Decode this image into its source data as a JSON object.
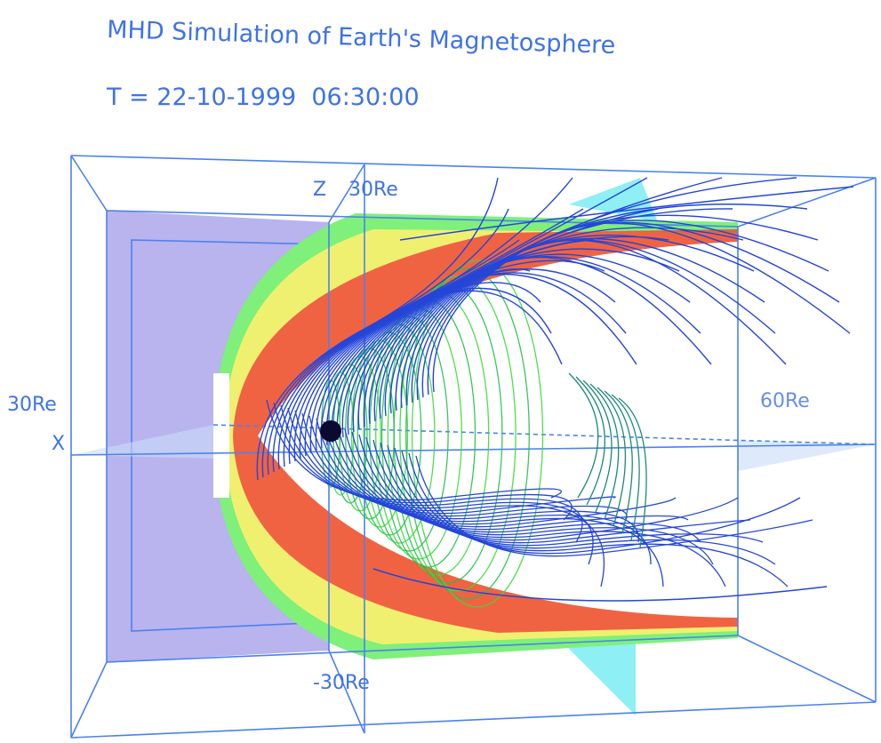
{
  "title": "MHD Simulation of Earth's Magnetosphere",
  "timestamp": "T = 22-10-1999  06:30:00",
  "axis_labels": {
    "z": "Z",
    "z_top": "30Re",
    "z_bottom": "-30Re",
    "y_left": "30Re",
    "x": "X",
    "x_right": "60Re"
  }
}
